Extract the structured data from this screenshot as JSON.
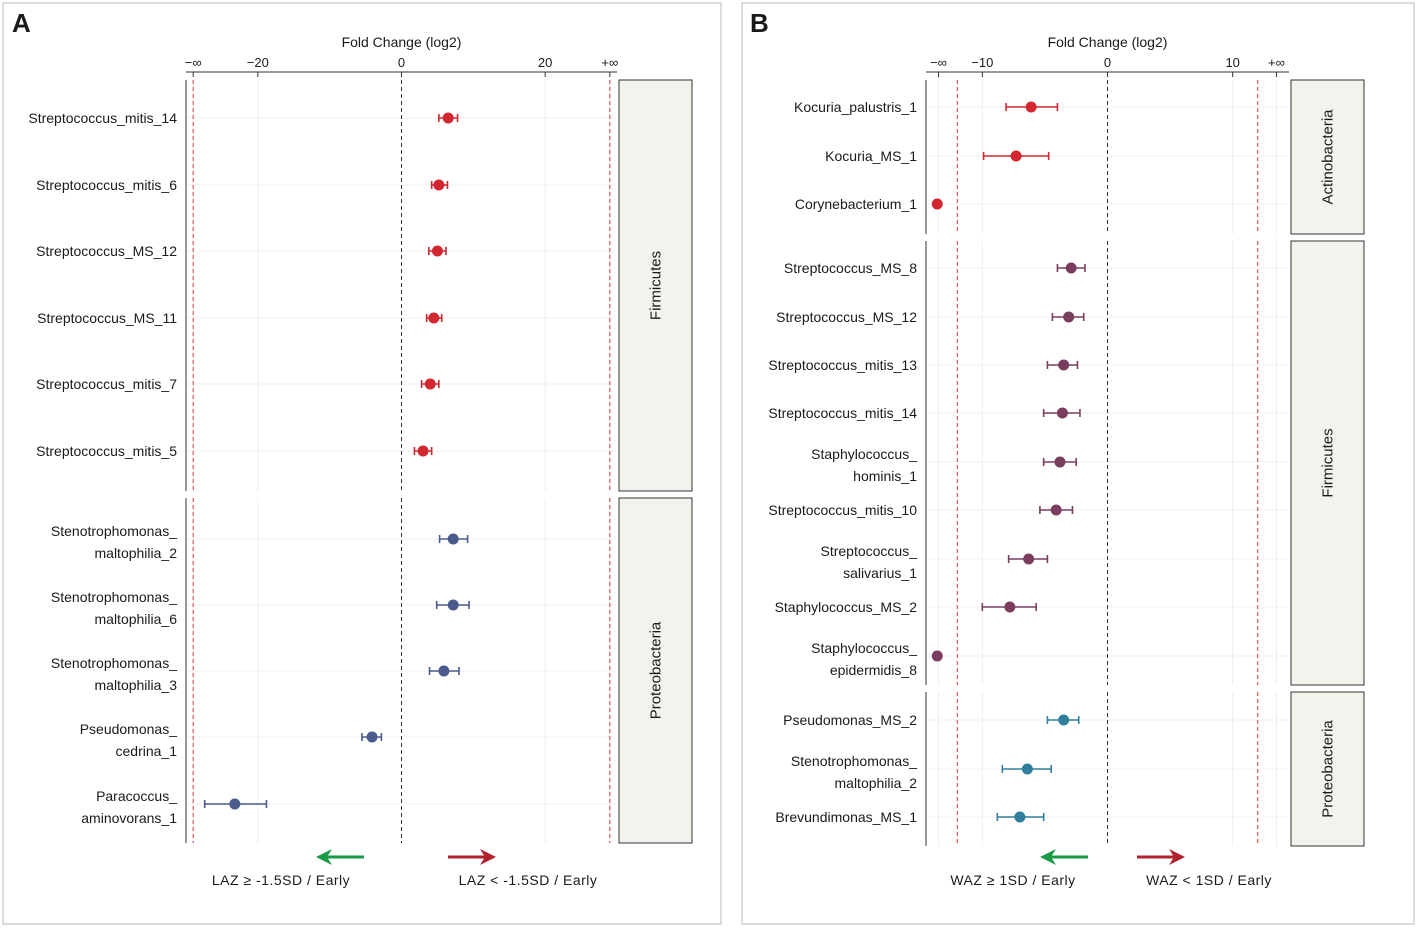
{
  "chart_data": [
    {
      "type": "scatter",
      "panel_label": "A",
      "title": "Fold Change (log2)",
      "xlim": [
        -30,
        30
      ],
      "neg_inf_value": -29,
      "pos_inf_value": 29,
      "ticks": [
        {
          "value": -29,
          "label": "−∞"
        },
        {
          "value": -20,
          "label": "−20"
        },
        {
          "value": 0,
          "label": "0"
        },
        {
          "value": 20,
          "label": "20"
        },
        {
          "value": 29,
          "label": "+∞"
        }
      ],
      "ref_lines": [
        -29,
        0,
        29
      ],
      "groups": [
        {
          "name": "Firmicutes",
          "color": "#d22630",
          "rows": [
            {
              "label": [
                "Streptococcus_mitis_14"
              ],
              "value": 6.5,
              "lo": 5.2,
              "hi": 7.8
            },
            {
              "label": [
                "Streptococcus_mitis_6"
              ],
              "value": 5.2,
              "lo": 4.2,
              "hi": 6.4
            },
            {
              "label": [
                "Streptococcus_MS_12"
              ],
              "value": 5.0,
              "lo": 3.8,
              "hi": 6.2
            },
            {
              "label": [
                "Streptococcus_MS_11"
              ],
              "value": 4.5,
              "lo": 3.5,
              "hi": 5.6
            },
            {
              "label": [
                "Streptococcus_mitis_7"
              ],
              "value": 4.0,
              "lo": 2.8,
              "hi": 5.2
            },
            {
              "label": [
                "Streptococcus_mitis_5"
              ],
              "value": 3.0,
              "lo": 1.8,
              "hi": 4.2
            }
          ]
        },
        {
          "name": "Proteobacteria",
          "color": "#4a5b8c",
          "rows": [
            {
              "label": [
                "Stenotrophomonas_",
                "maltophilia_2"
              ],
              "value": 7.2,
              "lo": 5.3,
              "hi": 9.2
            },
            {
              "label": [
                "Stenotrophomonas_",
                "maltophilia_6"
              ],
              "value": 7.2,
              "lo": 4.9,
              "hi": 9.4
            },
            {
              "label": [
                "Stenotrophomonas_",
                "maltophilia_3"
              ],
              "value": 5.9,
              "lo": 3.9,
              "hi": 8.0
            },
            {
              "label": [
                "Pseudomonas_",
                "cedrina_1"
              ],
              "value": -4.1,
              "lo": -5.5,
              "hi": -2.8
            },
            {
              "label": [
                "Paracoccus_",
                "aminovorans_1"
              ],
              "value": -23.2,
              "lo": -27.4,
              "hi": -18.8
            }
          ]
        }
      ],
      "legend": {
        "left_text": "LAZ ≥ -1.5SD / Early",
        "right_text": "LAZ < -1.5SD / Early",
        "left_color": "#1a9a46",
        "right_color": "#b0212d"
      }
    },
    {
      "type": "scatter",
      "panel_label": "B",
      "title": "Fold Change (log2)",
      "xlim": [
        -14.5,
        14.5
      ],
      "neg_inf_value": -13.5,
      "pos_inf_value": 13.5,
      "ticks": [
        {
          "value": -13.5,
          "label": "−∞"
        },
        {
          "value": -10,
          "label": "−10"
        },
        {
          "value": 0,
          "label": "0"
        },
        {
          "value": 10,
          "label": "10"
        },
        {
          "value": 13.5,
          "label": "+∞"
        }
      ],
      "ref_lines": [
        -12,
        0,
        12
      ],
      "groups": [
        {
          "name": "Actinobacteria",
          "color": "#d22630",
          "rows": [
            {
              "label": [
                "Kocuria_palustris_1"
              ],
              "value": -6.1,
              "lo": -8.1,
              "hi": -4.0
            },
            {
              "label": [
                "Kocuria_MS_1"
              ],
              "value": -7.3,
              "lo": -9.9,
              "hi": -4.7
            },
            {
              "label": [
                "Corynebacterium_1"
              ],
              "value": -13.6,
              "lo": null,
              "hi": null
            }
          ]
        },
        {
          "name": "Firmicutes",
          "color": "#7a3d5e",
          "rows": [
            {
              "label": [
                "Streptococcus_MS_8"
              ],
              "value": -2.9,
              "lo": -4.0,
              "hi": -1.8
            },
            {
              "label": [
                "Streptococcus_MS_12"
              ],
              "value": -3.1,
              "lo": -4.4,
              "hi": -1.9
            },
            {
              "label": [
                "Streptococcus_mitis_13"
              ],
              "value": -3.5,
              "lo": -4.8,
              "hi": -2.4
            },
            {
              "label": [
                "Streptococcus_mitis_14"
              ],
              "value": -3.6,
              "lo": -5.1,
              "hi": -2.2
            },
            {
              "label": [
                "Staphylococcus_",
                "hominis_1"
              ],
              "value": -3.8,
              "lo": -5.1,
              "hi": -2.5
            },
            {
              "label": [
                "Streptococcus_mitis_10"
              ],
              "value": -4.1,
              "lo": -5.4,
              "hi": -2.8
            },
            {
              "label": [
                "Streptococcus_",
                "salivarius_1"
              ],
              "value": -6.3,
              "lo": -7.9,
              "hi": -4.8
            },
            {
              "label": [
                "Staphylococcus_MS_2"
              ],
              "value": -7.8,
              "lo": -10.0,
              "hi": -5.7
            },
            {
              "label": [
                "Staphylococcus_",
                "epidermidis_8"
              ],
              "value": -13.6,
              "lo": null,
              "hi": null
            }
          ]
        },
        {
          "name": "Proteobacteria",
          "color": "#2f7f9c",
          "rows": [
            {
              "label": [
                "Pseudomonas_MS_2"
              ],
              "value": -3.5,
              "lo": -4.8,
              "hi": -2.3
            },
            {
              "label": [
                "Stenotrophomonas_",
                "maltophilia_2"
              ],
              "value": -6.4,
              "lo": -8.4,
              "hi": -4.5
            },
            {
              "label": [
                "Brevundimonas_MS_1"
              ],
              "value": -7.0,
              "lo": -8.8,
              "hi": -5.1
            }
          ]
        }
      ],
      "legend": {
        "left_text": "WAZ ≥ 1SD / Early",
        "right_text": "WAZ < 1SD / Early",
        "left_color": "#1a9a46",
        "right_color": "#b0212d"
      }
    }
  ]
}
